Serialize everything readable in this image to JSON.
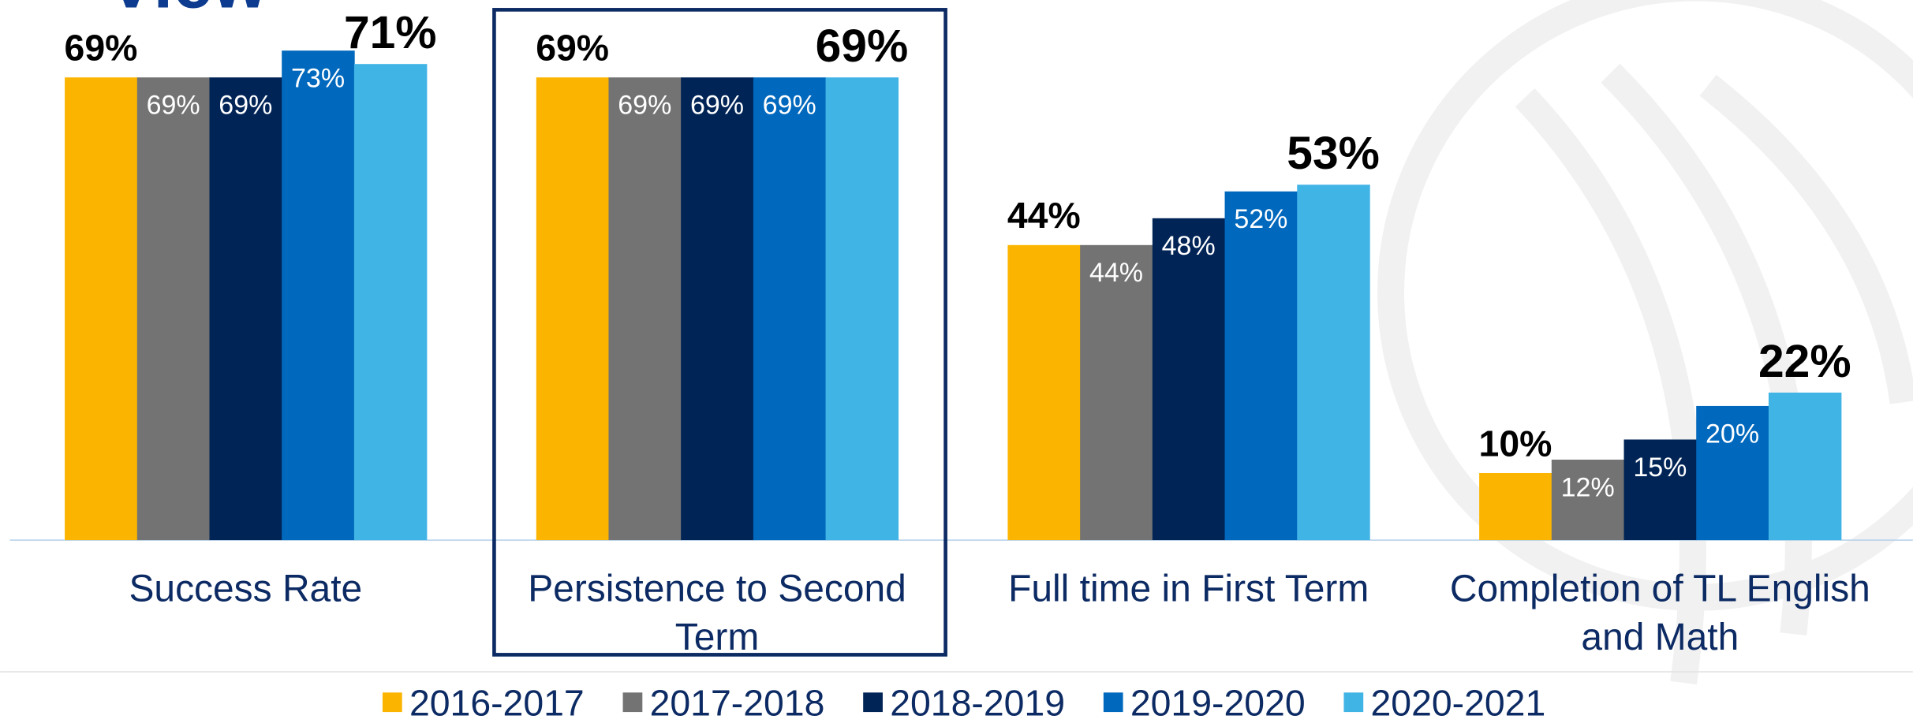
{
  "chart_data": {
    "type": "bar",
    "title": "View",
    "categories": [
      "Success Rate",
      "Persistence to Second Term",
      "Full time in First Term",
      "Completion of TL English and Math"
    ],
    "series": [
      {
        "name": "2016-2017",
        "color": "#fbb500",
        "values": [
          69,
          69,
          44,
          10
        ],
        "value_labels": [
          "69%",
          "69%",
          "44%",
          "10%"
        ]
      },
      {
        "name": "2017-2018",
        "color": "#737373",
        "values": [
          69,
          69,
          44,
          12
        ],
        "value_labels": [
          "69%",
          "69%",
          "44%",
          "12%"
        ]
      },
      {
        "name": "2018-2019",
        "color": "#002456",
        "values": [
          69,
          69,
          48,
          15
        ],
        "value_labels": [
          "69%",
          "69%",
          "48%",
          "15%"
        ]
      },
      {
        "name": "2019-2020",
        "color": "#0068bd",
        "values": [
          73,
          69,
          52,
          20
        ],
        "value_labels": [
          "73%",
          "69%",
          "52%",
          "20%"
        ]
      },
      {
        "name": "2020-2021",
        "color": "#41b4e6",
        "values": [
          71,
          69,
          53,
          22
        ],
        "value_labels": [
          "71%",
          "69%",
          "53%",
          "22%"
        ]
      }
    ],
    "ylim": [
      0,
      80
    ],
    "legend": "bottom"
  }
}
